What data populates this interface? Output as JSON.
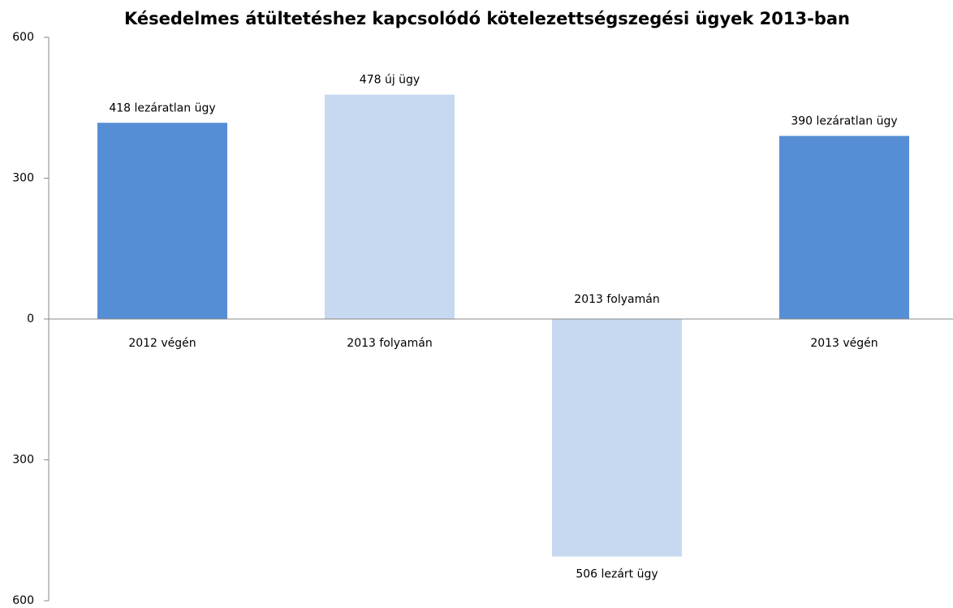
{
  "chart_data": {
    "type": "bar",
    "title": "Késedelmes átültetéshez kapcsolódó kötelezettségszegési ügyek 2013-ban",
    "categories": [
      "2012 végén",
      "2013 folyamán",
      "2013 folyamán",
      "2013 végén"
    ],
    "values": [
      418,
      478,
      -506,
      390
    ],
    "value_labels": [
      "418 lezáratlan ügy",
      "478 új ügy",
      "506 lezárt ügy",
      "390 lezáratlan ügy"
    ],
    "colors": [
      "#558ed5",
      "#c6d9f1",
      "#c6d9f1",
      "#558ed5"
    ],
    "ylim": [
      -600,
      600
    ],
    "yticks": [
      {
        "value": -600,
        "label": "600"
      },
      {
        "value": -300,
        "label": "300"
      },
      0,
      300,
      600
    ],
    "grid": false
  }
}
